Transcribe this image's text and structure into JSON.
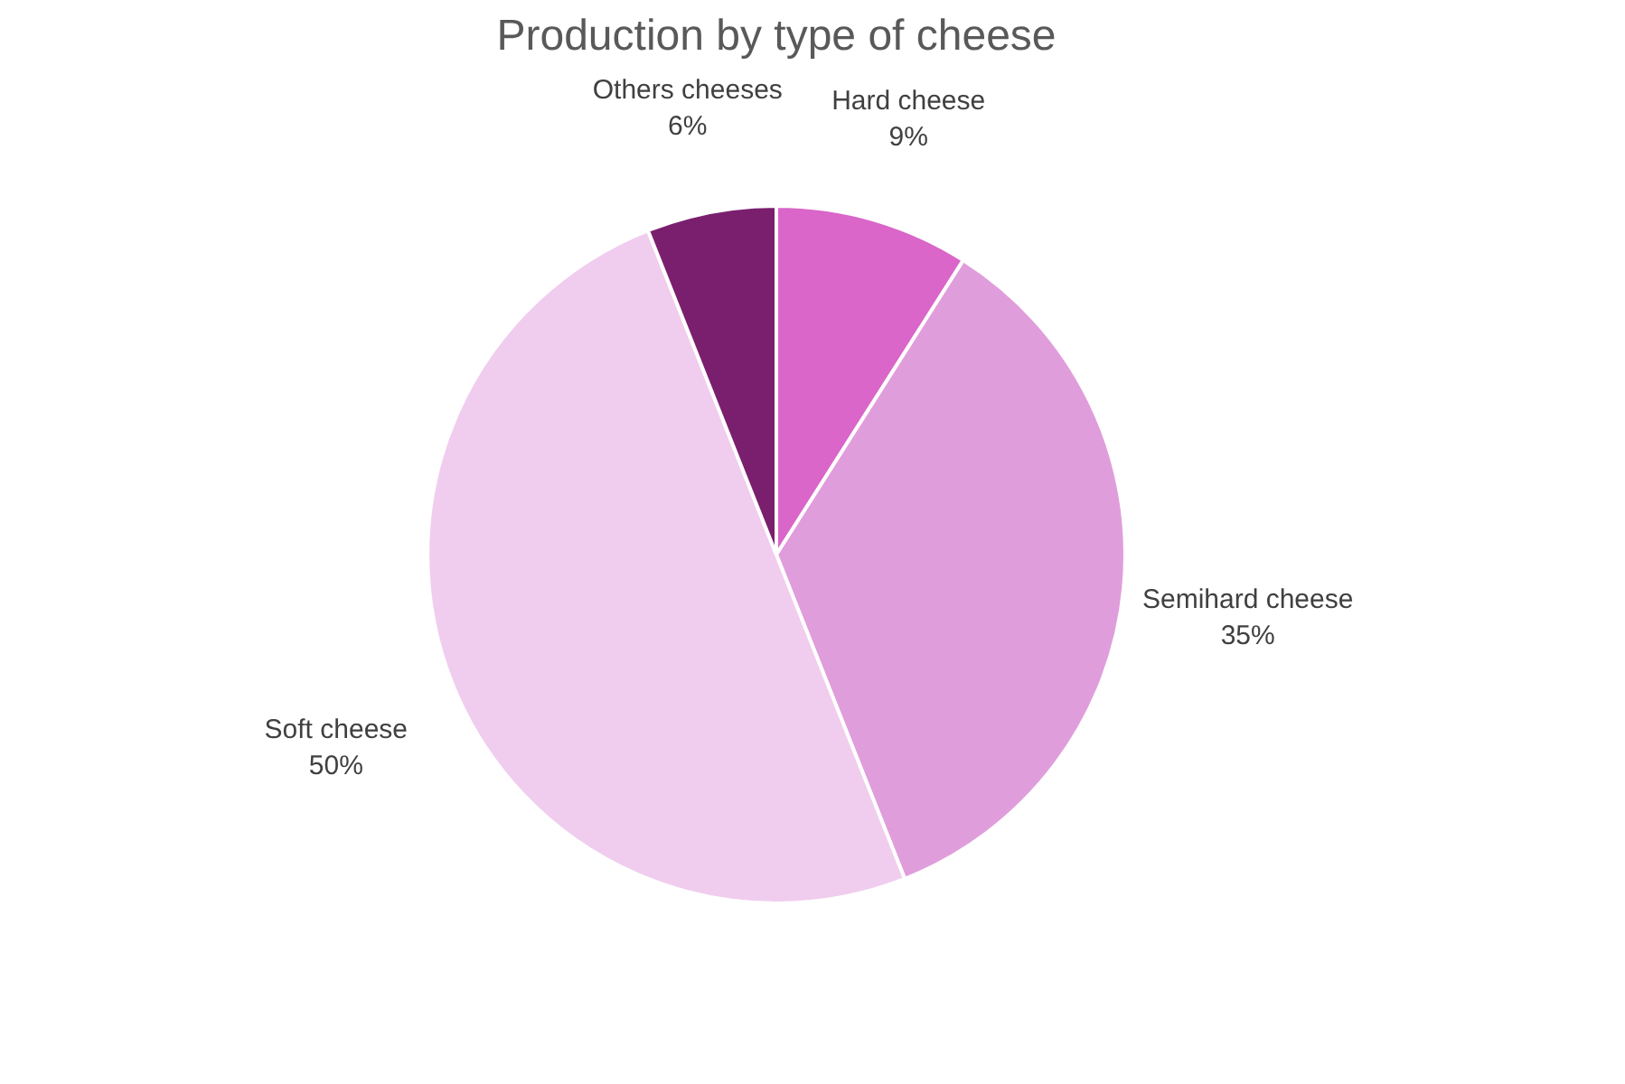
{
  "chart_data": {
    "type": "pie",
    "title": "Production by type of cheese",
    "categories": [
      "Hard cheese",
      "Semihard cheese",
      "Soft cheese",
      "Others cheeses"
    ],
    "values": [
      9,
      35,
      50,
      6
    ],
    "value_labels": [
      "9%",
      "35%",
      "50%",
      "6%"
    ],
    "colors": [
      "#d966c8",
      "#e09ddb",
      "#f0cdee",
      "#7a1f6e"
    ]
  }
}
